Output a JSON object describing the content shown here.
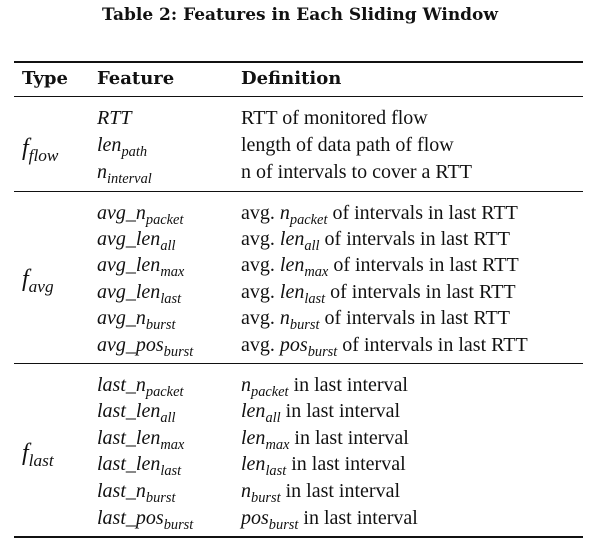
{
  "caption": "Table 2: Features in Each Sliding Window",
  "headers": {
    "type": "Type",
    "feature": "Feature",
    "definition": "Definition"
  },
  "groups": [
    {
      "type": {
        "base": "f",
        "sub": "flow"
      },
      "rows": [
        {
          "feature": {
            "base": "RTT",
            "sub": ""
          },
          "definition": [
            {
              "text": "RTT of monitored flow"
            }
          ]
        },
        {
          "feature": {
            "base": "len",
            "sub": "path"
          },
          "definition": [
            {
              "text": "length of data path of flow"
            }
          ]
        },
        {
          "feature": {
            "base": "n",
            "sub": "interval"
          },
          "definition": [
            {
              "text": "n of intervals to cover a RTT"
            }
          ]
        }
      ]
    },
    {
      "type": {
        "base": "f",
        "sub": "avg"
      },
      "rows": [
        {
          "feature": {
            "base": "avg_n",
            "sub": "packet"
          },
          "definition": [
            {
              "text": "avg. "
            },
            {
              "math": "n",
              "sub": "packet"
            },
            {
              "text": " of intervals in last RTT"
            }
          ]
        },
        {
          "feature": {
            "base": "avg_len",
            "sub": "all"
          },
          "definition": [
            {
              "text": "avg. "
            },
            {
              "math": "len",
              "sub": "all"
            },
            {
              "text": " of intervals in last RTT"
            }
          ]
        },
        {
          "feature": {
            "base": "avg_len",
            "sub": "max"
          },
          "definition": [
            {
              "text": "avg. "
            },
            {
              "math": "len",
              "sub": "max"
            },
            {
              "text": " of intervals in last RTT"
            }
          ]
        },
        {
          "feature": {
            "base": "avg_len",
            "sub": "last"
          },
          "definition": [
            {
              "text": "avg. "
            },
            {
              "math": "len",
              "sub": "last"
            },
            {
              "text": " of intervals in last RTT"
            }
          ]
        },
        {
          "feature": {
            "base": "avg_n",
            "sub": "burst"
          },
          "definition": [
            {
              "text": "avg. "
            },
            {
              "math": "n",
              "sub": "burst"
            },
            {
              "text": " of intervals in last RTT"
            }
          ]
        },
        {
          "feature": {
            "base": "avg_pos",
            "sub": "burst"
          },
          "definition": [
            {
              "text": "avg. "
            },
            {
              "math": "pos",
              "sub": "burst"
            },
            {
              "text": " of intervals in last RTT"
            }
          ]
        }
      ]
    },
    {
      "type": {
        "base": "f",
        "sub": "last"
      },
      "rows": [
        {
          "feature": {
            "base": "last_n",
            "sub": "packet"
          },
          "definition": [
            {
              "math": "n",
              "sub": "packet"
            },
            {
              "text": " in last interval"
            }
          ]
        },
        {
          "feature": {
            "base": "last_len",
            "sub": "all"
          },
          "definition": [
            {
              "math": "len",
              "sub": "all"
            },
            {
              "text": " in last interval"
            }
          ]
        },
        {
          "feature": {
            "base": "last_len",
            "sub": "max"
          },
          "definition": [
            {
              "math": "len",
              "sub": "max"
            },
            {
              "text": " in last interval"
            }
          ]
        },
        {
          "feature": {
            "base": "last_len",
            "sub": "last"
          },
          "definition": [
            {
              "math": "len",
              "sub": "last"
            },
            {
              "text": " in last interval"
            }
          ]
        },
        {
          "feature": {
            "base": "last_n",
            "sub": "burst"
          },
          "definition": [
            {
              "math": "n",
              "sub": "burst"
            },
            {
              "text": " in last interval"
            }
          ]
        },
        {
          "feature": {
            "base": "last_pos",
            "sub": "burst"
          },
          "definition": [
            {
              "math": "pos",
              "sub": "burst"
            },
            {
              "text": " in last interval"
            }
          ]
        }
      ]
    }
  ]
}
